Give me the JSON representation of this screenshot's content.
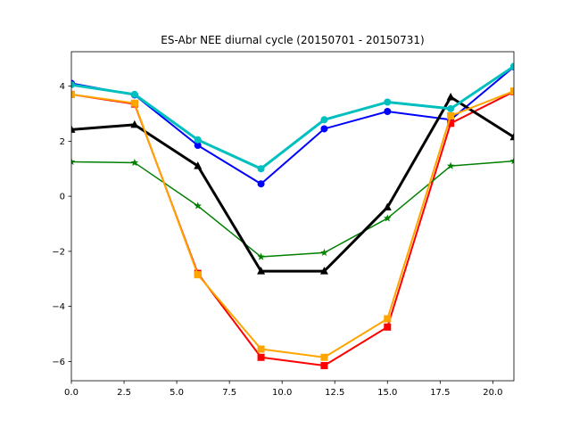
{
  "chart_data": {
    "type": "line",
    "title": "ES-Abr NEE diurnal cycle (20150701 - 20150731)",
    "xlabel": "",
    "ylabel": "",
    "xlim": [
      0,
      21
    ],
    "ylim": [
      -6.7,
      5.25
    ],
    "xticks": [
      0.0,
      2.5,
      5.0,
      7.5,
      10.0,
      12.5,
      15.0,
      17.5,
      20.0
    ],
    "xtick_labels": [
      "0.0",
      "2.5",
      "5.0",
      "7.5",
      "10.0",
      "12.5",
      "15.0",
      "17.5",
      "20.0"
    ],
    "yticks": [
      4,
      2,
      0,
      -2,
      -4,
      -6
    ],
    "ytick_labels": [
      "4",
      "2",
      "0",
      "−2",
      "−4",
      "−6"
    ],
    "grid": false,
    "x": [
      0,
      3,
      6,
      9,
      12,
      15,
      18,
      21
    ],
    "series": [
      {
        "color": "#0000ff",
        "marker": "circle",
        "width": 2,
        "values": [
          4.1,
          3.68,
          1.85,
          0.45,
          2.45,
          3.08,
          2.78,
          4.7
        ]
      },
      {
        "color": "#ff0000",
        "marker": "square",
        "width": 2,
        "values": [
          3.7,
          3.35,
          -2.8,
          -5.85,
          -6.15,
          -4.75,
          2.65,
          3.8
        ]
      },
      {
        "color": "#008000",
        "marker": "star",
        "width": 1.5,
        "values": [
          1.25,
          1.22,
          -0.35,
          -2.2,
          -2.05,
          -0.8,
          1.1,
          1.28
        ]
      },
      {
        "color": "#000000",
        "marker": "triangle",
        "width": 3,
        "values": [
          2.42,
          2.6,
          1.1,
          -2.72,
          -2.72,
          -0.4,
          3.6,
          2.15
        ]
      },
      {
        "color": "#00bfbf",
        "marker": "circle",
        "width": 3,
        "values": [
          4.05,
          3.7,
          2.05,
          1.0,
          2.78,
          3.42,
          3.18,
          4.72
        ]
      },
      {
        "color": "#ffa500",
        "marker": "square",
        "width": 2,
        "values": [
          3.7,
          3.38,
          -2.85,
          -5.55,
          -5.85,
          -4.45,
          2.92,
          3.82
        ]
      }
    ]
  }
}
